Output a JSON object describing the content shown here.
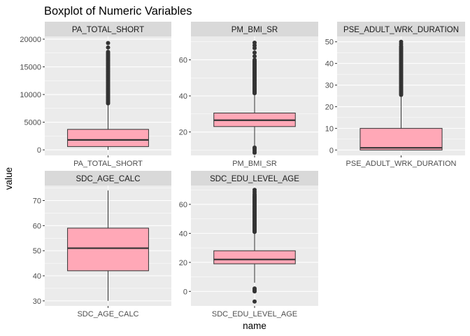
{
  "chart_data": {
    "type": "boxplot",
    "title": "Boxplot of Numeric Variables",
    "xlabel": "name",
    "ylabel": "value",
    "colors": {
      "box_fill": "#ffa8b7",
      "box_line": "#333333",
      "panel_bg": "#ebebeb",
      "strip_bg": "#d9d9d9",
      "grid": "#ffffff"
    },
    "grid": true,
    "facets": [
      {
        "name": "PA_TOTAL_SHORT",
        "x_tick": "PA_TOTAL_SHORT",
        "ylim": [
          -1000,
          20500
        ],
        "y_ticks": [
          0,
          5000,
          10000,
          15000,
          20000
        ],
        "y_tick_labels": [
          "0",
          "5000",
          "10000",
          "15000",
          "20000"
        ],
        "whisker_low": 0,
        "q1": 600,
        "median": 1800,
        "q3": 3700,
        "whisker_high": 8400,
        "outliers_range": [
          8400,
          17700
        ],
        "outliers_extra": [
          18500,
          19300
        ]
      },
      {
        "name": "PM_BMI_SR",
        "x_tick": "PM_BMI_SR",
        "ylim": [
          7,
          73
        ],
        "y_ticks": [
          20,
          40,
          60
        ],
        "y_tick_labels": [
          "20",
          "40",
          "60"
        ],
        "whisker_low": 12,
        "q1": 23,
        "median": 26.5,
        "q3": 30.5,
        "whisker_high": 41.5,
        "outliers_low": [
          8.5,
          9.5,
          10.5,
          11.3
        ],
        "outliers_range": [
          41.5,
          60
        ],
        "outliers_extra": [
          62,
          64,
          66.5,
          68,
          69.5
        ]
      },
      {
        "name": "PSE_ADULT_WRK_DURATION",
        "x_tick": "PSE_ADULT_WRK_DURATION",
        "ylim": [
          -2.5,
          52.5
        ],
        "y_ticks": [
          0,
          10,
          20,
          30,
          40,
          50
        ],
        "y_tick_labels": [
          "0",
          "10",
          "20",
          "30",
          "40",
          "50"
        ],
        "whisker_low": 0,
        "q1": 0,
        "median": 1,
        "q3": 10,
        "whisker_high": 25,
        "outliers_range": [
          25.5,
          48
        ],
        "outliers_extra": [
          49,
          50
        ]
      },
      {
        "name": "SDC_AGE_CALC",
        "x_tick": "SDC_AGE_CALC",
        "ylim": [
          28,
          76
        ],
        "y_ticks": [
          30,
          40,
          50,
          60,
          70
        ],
        "y_tick_labels": [
          "30",
          "40",
          "50",
          "60",
          "70"
        ],
        "whisker_low": 30,
        "q1": 42,
        "median": 51,
        "q3": 59,
        "whisker_high": 74,
        "outliers_range": null,
        "outliers_extra": []
      },
      {
        "name": "SDC_EDU_LEVEL_AGE",
        "x_tick": "SDC_EDU_LEVEL_AGE",
        "ylim": [
          -10,
          73
        ],
        "y_ticks": [
          0,
          20,
          40,
          60
        ],
        "y_tick_labels": [
          "0",
          "20",
          "40",
          "60"
        ],
        "whisker_low": 6,
        "q1": 19,
        "median": 22,
        "q3": 28,
        "whisker_high": 41,
        "outliers_low": [
          -7,
          0,
          1,
          2
        ],
        "outliers_range": [
          41,
          66
        ],
        "outliers_extra": [
          67,
          68.5,
          70
        ]
      }
    ]
  }
}
